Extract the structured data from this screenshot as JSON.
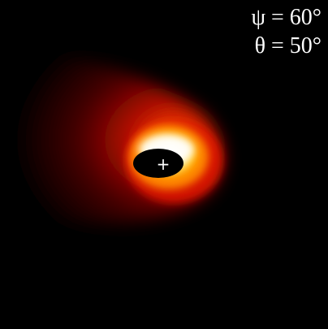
{
  "labels": {
    "psi": "ψ = 60°",
    "theta": "θ = 50°"
  },
  "marker": {
    "symbol": "+"
  },
  "colors": {
    "background": "#000000",
    "glow_core": "#ffffff",
    "glow_yellow": "#ffe070",
    "glow_orange": "#ff8a00",
    "glow_red": "#d81800",
    "glow_dark_red": "#5a0000",
    "hole": "#000000",
    "text": "#ffffff"
  },
  "icons": {
    "center_marker": "crosshair-plus-icon"
  }
}
